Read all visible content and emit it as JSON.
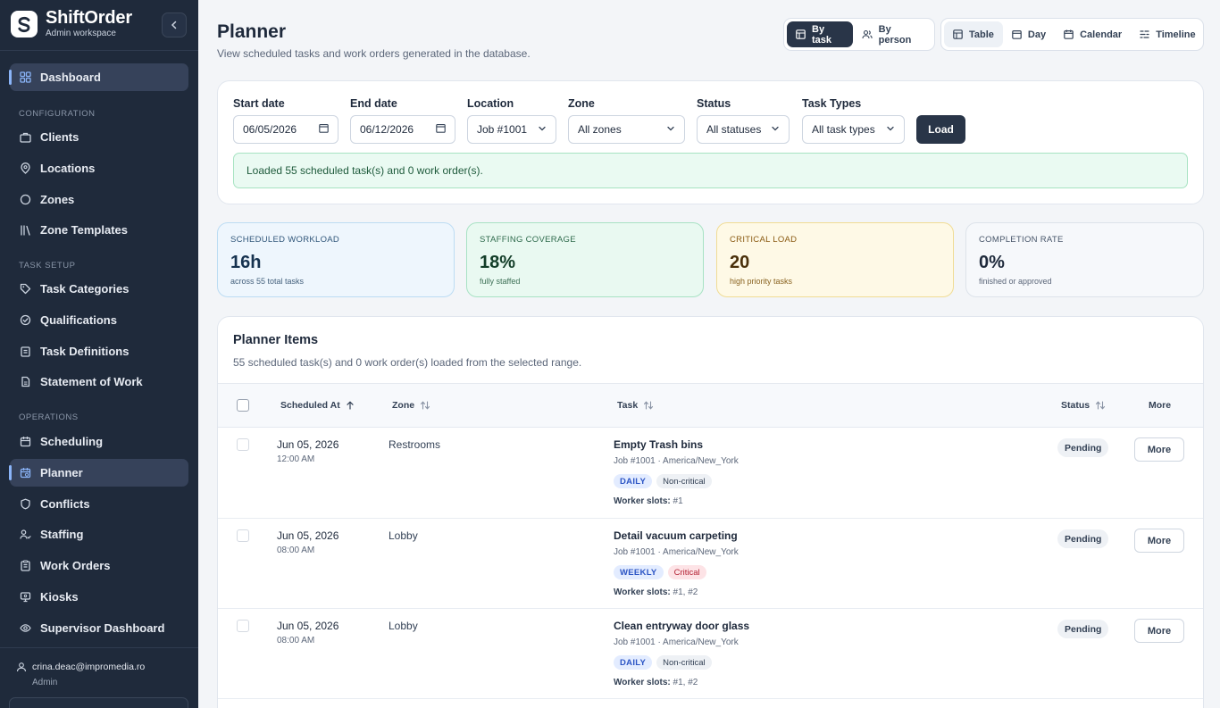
{
  "brand": {
    "name": "ShiftOrder",
    "subtitle": "Admin workspace"
  },
  "sidebar": {
    "items": [
      {
        "label": "Dashboard",
        "icon": "grid-icon"
      },
      {
        "label": "Clients",
        "icon": "briefcase-icon"
      },
      {
        "label": "Locations",
        "icon": "map-pin-icon"
      },
      {
        "label": "Zones",
        "icon": "circle-icon"
      },
      {
        "label": "Zone Templates",
        "icon": "library-icon"
      },
      {
        "label": "Task Categories",
        "icon": "tag-icon"
      },
      {
        "label": "Qualifications",
        "icon": "check-circle-icon"
      },
      {
        "label": "Task Definitions",
        "icon": "clipboard-icon"
      },
      {
        "label": "Statement of Work",
        "icon": "document-icon"
      },
      {
        "label": "Scheduling",
        "icon": "calendar-icon"
      },
      {
        "label": "Planner",
        "icon": "calendar-clock-icon"
      },
      {
        "label": "Conflicts",
        "icon": "shield-icon"
      },
      {
        "label": "Staffing",
        "icon": "users-icon"
      },
      {
        "label": "Work Orders",
        "icon": "clipboard-list-icon"
      },
      {
        "label": "Kiosks",
        "icon": "monitor-icon"
      },
      {
        "label": "Supervisor Dashboard",
        "icon": "eye-icon"
      }
    ],
    "sections": {
      "configuration": "CONFIGURATION",
      "task_setup": "TASK SETUP",
      "operations": "OPERATIONS"
    },
    "user": {
      "email": "crina.deac@impromedia.ro",
      "role": "Admin"
    }
  },
  "header": {
    "title": "Planner",
    "subtitle": "View scheduled tasks and work orders generated in the database.",
    "group_toggle": {
      "by_task": "By task",
      "by_person": "By person"
    },
    "view_toggle": {
      "table": "Table",
      "day": "Day",
      "calendar": "Calendar",
      "timeline": "Timeline"
    }
  },
  "filters": {
    "start_date": {
      "label": "Start date",
      "value": "06/05/2026"
    },
    "end_date": {
      "label": "End date",
      "value": "06/12/2026"
    },
    "location": {
      "label": "Location",
      "value": "Job #1001"
    },
    "zone": {
      "label": "Zone",
      "value": "All zones"
    },
    "status": {
      "label": "Status",
      "value": "All statuses"
    },
    "task_types": {
      "label": "Task Types",
      "value": "All task types"
    },
    "load_label": "Load",
    "message": "Loaded 55 scheduled task(s) and 0 work order(s)."
  },
  "stats": {
    "workload": {
      "label": "SCHEDULED WORKLOAD",
      "value": "16h",
      "caption": "across 55 total tasks",
      "color": "#eef6fd"
    },
    "coverage": {
      "label": "STAFFING COVERAGE",
      "value": "18%",
      "caption": "fully staffed",
      "color": "#e9f9f1"
    },
    "critical": {
      "label": "CRITICAL LOAD",
      "value": "20",
      "caption": "high priority tasks",
      "color": "#fef9e6"
    },
    "completion": {
      "label": "COMPLETION RATE",
      "value": "0%",
      "caption": "finished or approved",
      "color": "#f6f8fb"
    }
  },
  "table": {
    "title": "Planner Items",
    "subtitle": "55 scheduled task(s) and 0 work order(s) loaded from the selected range.",
    "columns": {
      "scheduled_at": "Scheduled At",
      "zone": "Zone",
      "task": "Task",
      "status": "Status",
      "more": "More"
    },
    "rows": [
      {
        "date": "Jun 05, 2026",
        "time": "12:00 AM",
        "zone": "Restrooms",
        "task": "Empty Trash bins",
        "job": "Job #1001 · America/New_York",
        "frequency": "DAILY",
        "criticality": "Non-critical",
        "slots_label": "Worker slots:",
        "slots": "#1",
        "status": "Pending",
        "more_label": "More"
      },
      {
        "date": "Jun 05, 2026",
        "time": "08:00 AM",
        "zone": "Lobby",
        "task": "Detail vacuum carpeting",
        "job": "Job #1001 · America/New_York",
        "frequency": "WEEKLY",
        "criticality": "Critical",
        "slots_label": "Worker slots:",
        "slots": "#1, #2",
        "status": "Pending",
        "more_label": "More"
      },
      {
        "date": "Jun 05, 2026",
        "time": "08:00 AM",
        "zone": "Lobby",
        "task": "Clean entryway door glass",
        "job": "Job #1001 · America/New_York",
        "frequency": "DAILY",
        "criticality": "Non-critical",
        "slots_label": "Worker slots:",
        "slots": "#1, #2",
        "status": "Pending",
        "more_label": "More"
      }
    ]
  }
}
